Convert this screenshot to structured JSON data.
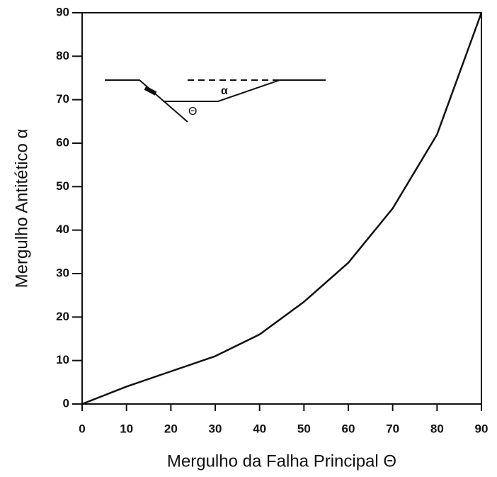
{
  "chart_data": {
    "type": "line",
    "x_label": "Mergulho da Falha Principal Θ",
    "y_label": "Mergulho Antitético α",
    "x": [
      0,
      10,
      20,
      30,
      40,
      50,
      60,
      70,
      80,
      90
    ],
    "series": [
      {
        "color": "#111111",
        "values": [
          0,
          4,
          7.5,
          11,
          16,
          23.5,
          32.5,
          45,
          62,
          90
        ]
      }
    ],
    "xlim": [
      0,
      90
    ],
    "ylim": [
      0,
      90
    ],
    "xticks": [
      0,
      10,
      20,
      30,
      40,
      50,
      60,
      70,
      80,
      90
    ],
    "yticks": [
      0,
      10,
      20,
      30,
      40,
      50,
      60,
      70,
      80,
      90
    ],
    "annotations": [
      "α",
      "Θ"
    ]
  }
}
